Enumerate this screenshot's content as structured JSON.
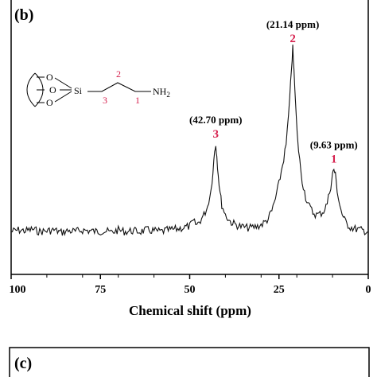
{
  "panel_b": {
    "label": "(b)"
  },
  "panel_c": {
    "label": "(c)"
  },
  "structure": {
    "o_labels": [
      "O",
      "O",
      "O"
    ],
    "si_label": "Si",
    "nh2_label": "NH",
    "nh2_sub": "2",
    "carbon_numbers": [
      "3",
      "2",
      "1"
    ]
  },
  "colors": {
    "line": "#111111",
    "peak_number": "#d6204e",
    "text": "#000000"
  },
  "chart_data": {
    "type": "line",
    "xlabel": "Chemical shift (ppm)",
    "ylabel": "",
    "xlim": [
      100,
      0
    ],
    "x_reversed": true,
    "xticks": [
      100,
      75,
      50,
      25,
      0
    ],
    "grid": false,
    "series": [
      {
        "x": [
          100,
          98,
          96,
          94,
          92,
          90,
          88,
          86,
          84,
          82,
          80,
          78,
          76,
          74,
          72,
          70,
          68,
          66,
          64,
          62,
          60,
          58,
          56,
          54,
          52,
          50,
          49,
          48,
          47,
          46,
          45,
          44,
          43.5,
          43,
          42.7,
          42.4,
          42,
          41.5,
          41,
          40,
          39,
          38,
          37,
          36,
          35,
          34,
          33,
          32,
          31,
          30,
          29,
          28,
          27,
          26,
          25,
          24,
          23,
          22,
          21.5,
          21.14,
          20.8,
          20.3,
          19.5,
          18.5,
          17.5,
          16.5,
          15.5,
          14.5,
          13.5,
          12.5,
          11.5,
          10.5,
          10,
          9.63,
          9.2,
          8.7,
          8,
          7,
          6,
          5,
          4,
          3,
          2,
          1,
          0
        ],
        "y": [
          5,
          7,
          6,
          8,
          5,
          6,
          7,
          4,
          6,
          5,
          7,
          6,
          5,
          6,
          4,
          7,
          5,
          6,
          5,
          7,
          6,
          5,
          7,
          8,
          10,
          12,
          18,
          14,
          20,
          27,
          38,
          60,
          85,
          110,
          120,
          104,
          80,
          56,
          40,
          27,
          20,
          16,
          14,
          12,
          11,
          10,
          10,
          11,
          12,
          14,
          17,
          22,
          32,
          48,
          68,
          92,
          118,
          175,
          220,
          245,
          215,
          165,
          110,
          72,
          50,
          38,
          30,
          27,
          28,
          32,
          42,
          65,
          80,
          87,
          79,
          60,
          40,
          23,
          15,
          11,
          9,
          8,
          7,
          6,
          5
        ]
      }
    ],
    "annotations": [
      {
        "text": "(42.70 ppm)",
        "number": "3",
        "x": 42.7
      },
      {
        "text": "(21.14 ppm)",
        "number": "2",
        "x": 21.14
      },
      {
        "text": "(9.63 ppm)",
        "number": "1",
        "x": 9.63
      }
    ]
  }
}
